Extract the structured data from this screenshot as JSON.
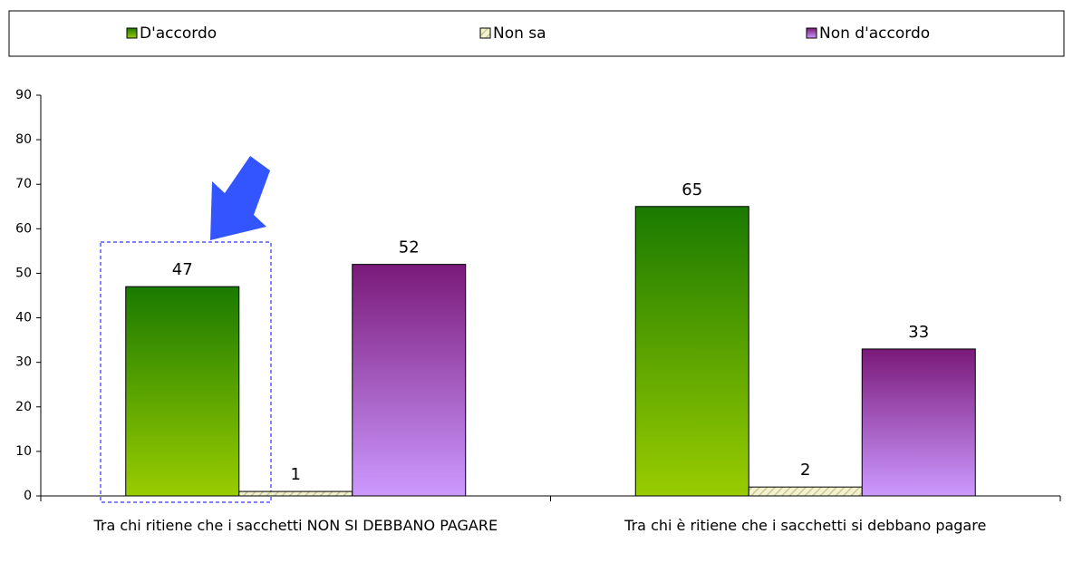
{
  "chart_data": {
    "type": "bar",
    "categories": [
      "Tra chi ritiene che i sacchetti NON SI DEBBANO PAGARE",
      "Tra chi è ritiene che i sacchetti si debbano pagare"
    ],
    "series": [
      {
        "name": "D'accordo",
        "color": "#1a7a00",
        "color_bottom": "#99cc00",
        "values": [
          47,
          65
        ]
      },
      {
        "name": "Non sa",
        "color": "#e6e6b8",
        "color_bottom": "#e6e6b8",
        "values": [
          1,
          2
        ]
      },
      {
        "name": "Non d'accordo",
        "color": "#7a1a7a",
        "color_bottom": "#cc99ff",
        "values": [
          52,
          33
        ]
      }
    ],
    "ylim": [
      0,
      90
    ],
    "yticks": [
      0,
      10,
      20,
      30,
      40,
      50,
      60,
      70,
      80,
      90
    ],
    "legend": "top",
    "grid": false
  }
}
